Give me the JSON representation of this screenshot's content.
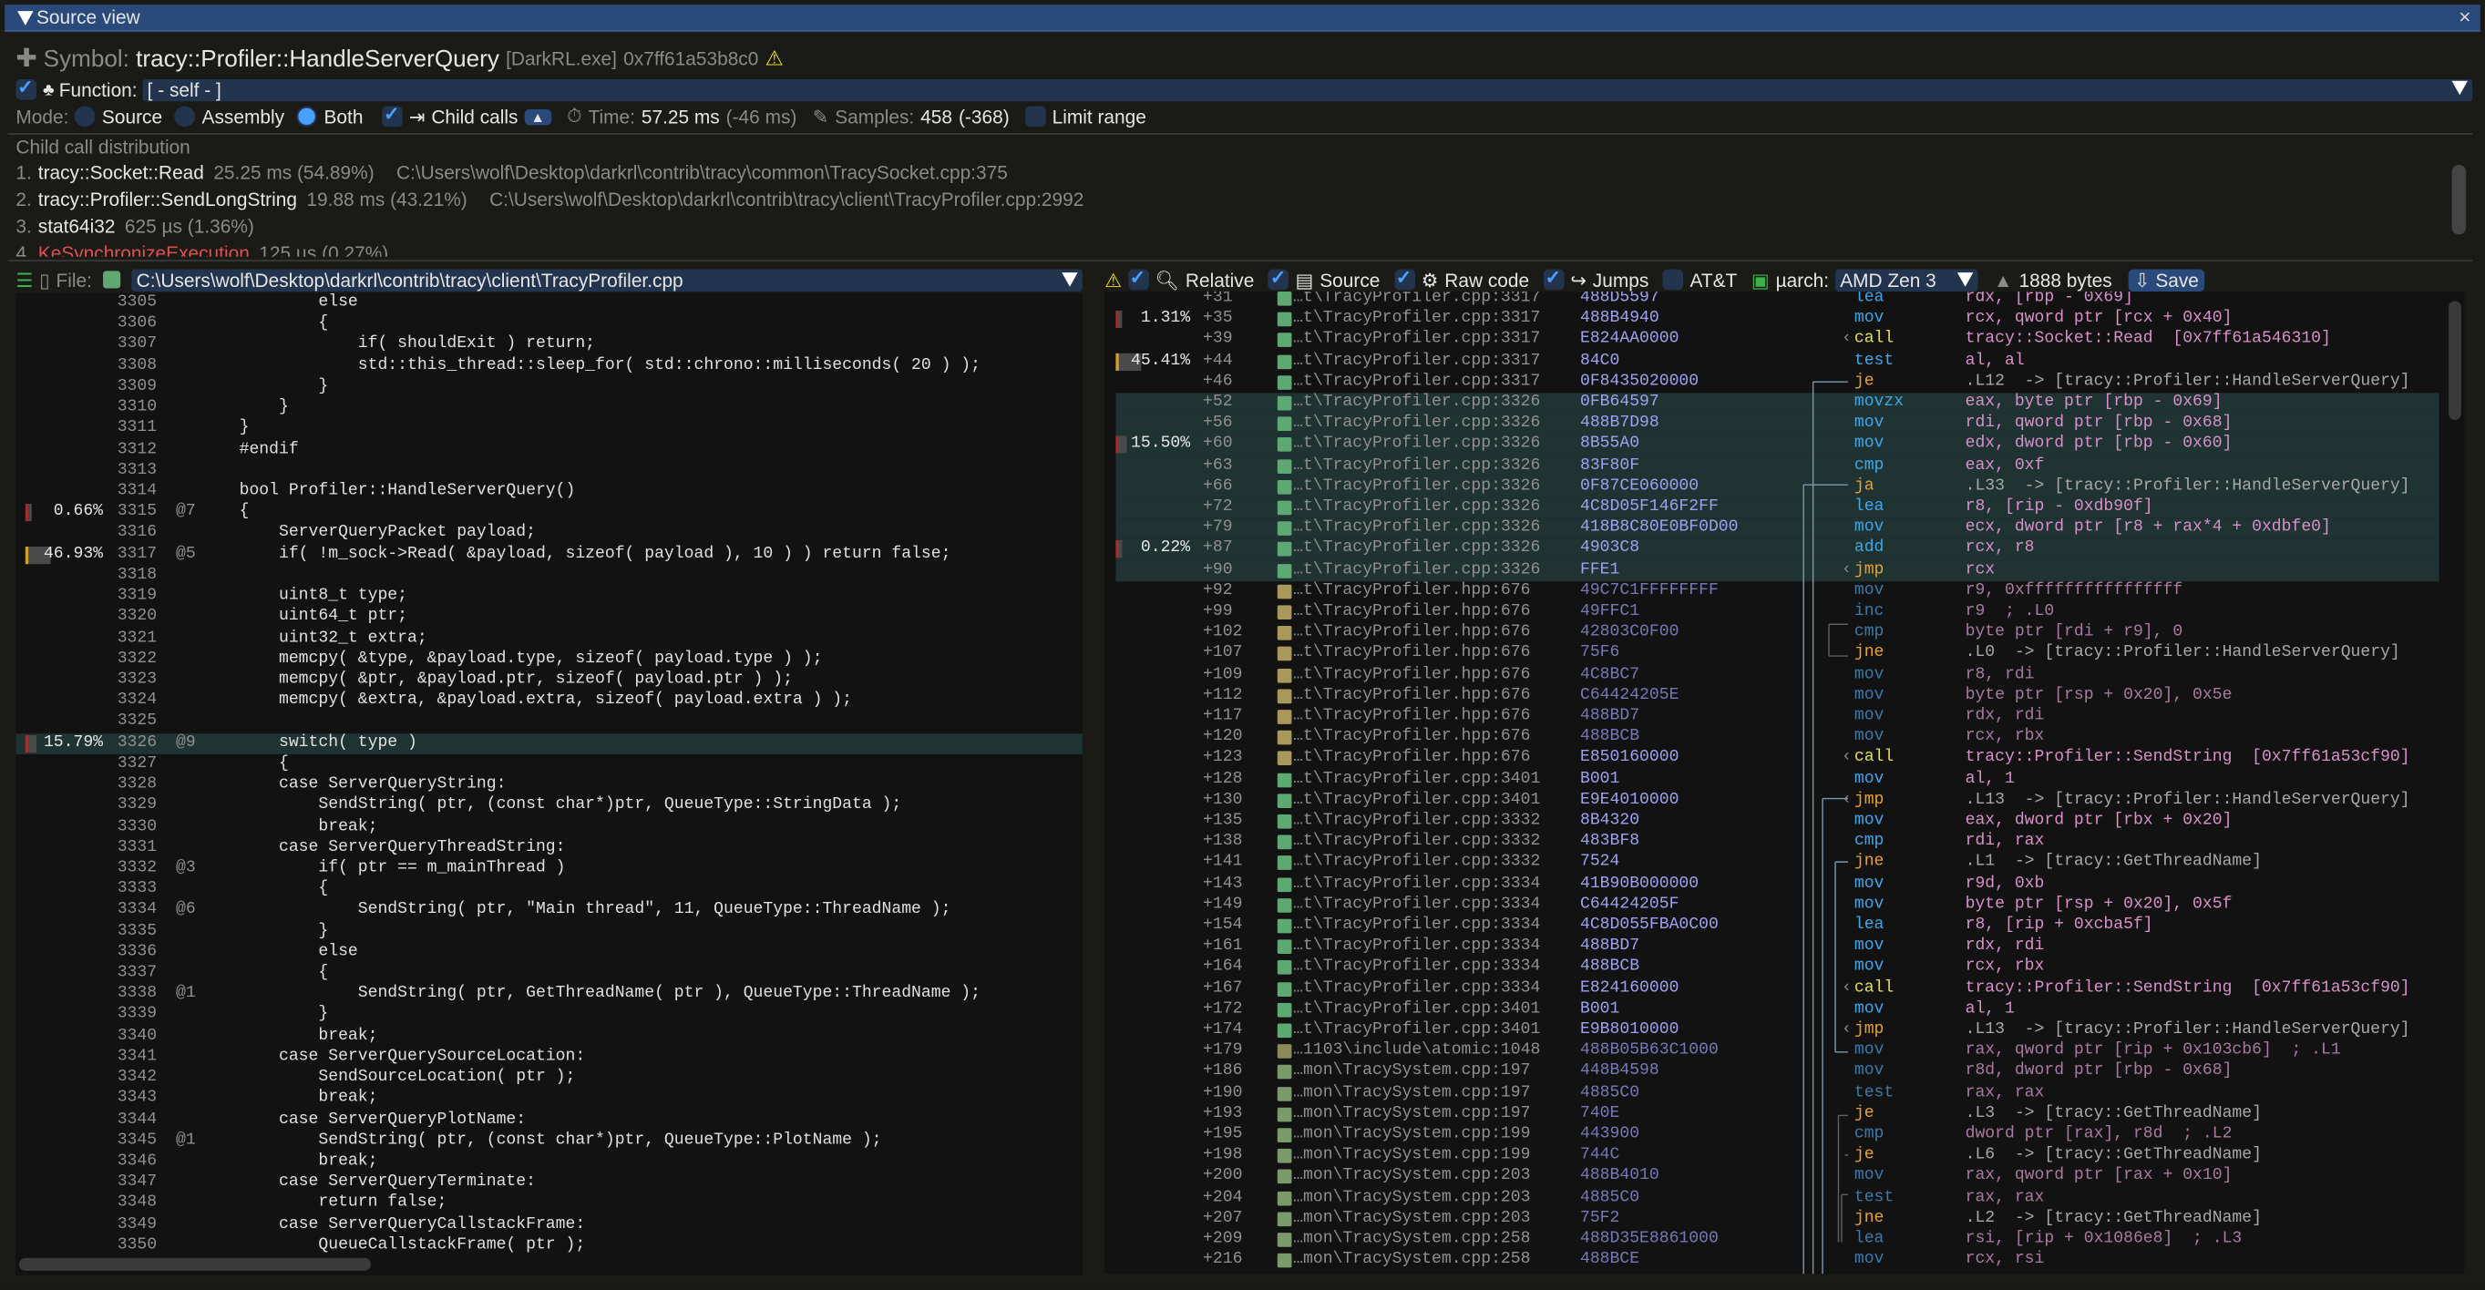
{
  "window": {
    "title": "Source view",
    "close": "×"
  },
  "symbol": {
    "label": "Symbol:",
    "name": "tracy::Profiler::HandleServerQuery",
    "image": "[DarkRL.exe]",
    "address": "0x7ff61a53b8c0"
  },
  "function": {
    "label": "Function:",
    "value": "[ - self - ]",
    "checked": true
  },
  "mode": {
    "label": "Mode:",
    "options": [
      "Source",
      "Assembly",
      "Both"
    ],
    "selected": "Both",
    "child_calls": "Child calls",
    "child_calls_checked": true,
    "time_label": "Time:",
    "time": "57.25 ms",
    "time_delta": "(-46 ms)",
    "samples_label": "Samples:",
    "samples": "458",
    "samples_delta": "(-368)",
    "limit_range": "Limit range"
  },
  "child_dist": {
    "title": "Child call distribution",
    "items": [
      {
        "n": "1.",
        "name": "tracy::Socket::Read",
        "time": "25.25 ms (54.89%)",
        "file": "C:\\Users\\wolf\\Desktop\\darkrl\\contrib\\tracy\\common\\TracySocket.cpp:375"
      },
      {
        "n": "2.",
        "name": "tracy::Profiler::SendLongString",
        "time": "19.88 ms (43.21%)",
        "file": "C:\\Users\\wolf\\Desktop\\darkrl\\contrib\\tracy\\client\\TracyProfiler.cpp:2992"
      },
      {
        "n": "3.",
        "name": "stat64i32",
        "time": "625 µs (1.36%)",
        "file": ""
      },
      {
        "n": "4.",
        "name": "KeSynchronizeExecution",
        "time": "125 µs (0.27%)",
        "file": "",
        "color": "#e05050"
      }
    ]
  },
  "source": {
    "file_label": "File:",
    "file": "C:\\Users\\wolf\\Desktop\\darkrl\\contrib\\tracy\\client\\TracyProfiler.cpp",
    "lines": [
      [
        "3305",
        "",
        "",
        "        else"
      ],
      [
        "3306",
        "",
        "",
        "        {"
      ],
      [
        "3307",
        "",
        "",
        "            if( shouldExit ) return;"
      ],
      [
        "3308",
        "",
        "",
        "            std::this_thread::sleep_for( std::chrono::milliseconds( 20 ) );"
      ],
      [
        "3309",
        "",
        "",
        "        }"
      ],
      [
        "3310",
        "",
        "",
        "    }"
      ],
      [
        "3311",
        "",
        "",
        "}"
      ],
      [
        "3312",
        "",
        "",
        "#endif"
      ],
      [
        "3313",
        "",
        "",
        ""
      ],
      [
        "3314",
        "",
        "",
        "bool Profiler::HandleServerQuery()"
      ],
      [
        "3315",
        "0.66%",
        "@7",
        "{"
      ],
      [
        "3316",
        "",
        "",
        "    ServerQueryPacket payload;"
      ],
      [
        "3317",
        "46.93%",
        "@5",
        "    if( !m_sock->Read( &payload, sizeof( payload ), 10 ) ) return false;"
      ],
      [
        "3318",
        "",
        "",
        ""
      ],
      [
        "3319",
        "",
        "",
        "    uint8_t type;"
      ],
      [
        "3320",
        "",
        "",
        "    uint64_t ptr;"
      ],
      [
        "3321",
        "",
        "",
        "    uint32_t extra;"
      ],
      [
        "3322",
        "",
        "",
        "    memcpy( &type, &payload.type, sizeof( payload.type ) );"
      ],
      [
        "3323",
        "",
        "",
        "    memcpy( &ptr, &payload.ptr, sizeof( payload.ptr ) );"
      ],
      [
        "3324",
        "",
        "",
        "    memcpy( &extra, &payload.extra, sizeof( payload.extra ) );"
      ],
      [
        "3325",
        "",
        "",
        ""
      ],
      [
        "3326",
        "15.79%",
        "@9",
        "    switch( type )"
      ],
      [
        "3327",
        "",
        "",
        "    {"
      ],
      [
        "3328",
        "",
        "",
        "    case ServerQueryString:"
      ],
      [
        "3329",
        "",
        "",
        "        SendString( ptr, (const char*)ptr, QueueType::StringData );"
      ],
      [
        "3330",
        "",
        "",
        "        break;"
      ],
      [
        "3331",
        "",
        "",
        "    case ServerQueryThreadString:"
      ],
      [
        "3332",
        "",
        "@3",
        "        if( ptr == m_mainThread )"
      ],
      [
        "3333",
        "",
        "",
        "        {"
      ],
      [
        "3334",
        "",
        "@6",
        "            SendString( ptr, \"Main thread\", 11, QueueType::ThreadName );"
      ],
      [
        "3335",
        "",
        "",
        "        }"
      ],
      [
        "3336",
        "",
        "",
        "        else"
      ],
      [
        "3337",
        "",
        "",
        "        {"
      ],
      [
        "3338",
        "",
        "@1",
        "            SendString( ptr, GetThreadName( ptr ), QueueType::ThreadName );"
      ],
      [
        "3339",
        "",
        "",
        "        }"
      ],
      [
        "3340",
        "",
        "",
        "        break;"
      ],
      [
        "3341",
        "",
        "",
        "    case ServerQuerySourceLocation:"
      ],
      [
        "3342",
        "",
        "",
        "        SendSourceLocation( ptr );"
      ],
      [
        "3343",
        "",
        "",
        "        break;"
      ],
      [
        "3344",
        "",
        "",
        "    case ServerQueryPlotName:"
      ],
      [
        "3345",
        "",
        "@1",
        "        SendString( ptr, (const char*)ptr, QueueType::PlotName );"
      ],
      [
        "3346",
        "",
        "",
        "        break;"
      ],
      [
        "3347",
        "",
        "",
        "    case ServerQueryTerminate:"
      ],
      [
        "3348",
        "",
        "",
        "        return false;"
      ],
      [
        "3349",
        "",
        "",
        "    case ServerQueryCallstackFrame:"
      ],
      [
        "3350",
        "",
        "",
        "        QueueCallstackFrame( ptr );"
      ]
    ],
    "highlight_line": "3326"
  },
  "asm": {
    "toolbar": {
      "relative": "Relative",
      "source": "Source",
      "raw_code": "Raw code",
      "jumps": "Jumps",
      "att": "AT&T",
      "uarch_label": "µarch:",
      "uarch": "AMD Zen 3",
      "size": "1888 bytes",
      "save": "Save"
    },
    "file_colors": {
      "cpp": "#5fa874",
      "hpp": "#a8985c",
      "atomic": "#8a8a5a",
      "sys": "#7a9a6a"
    },
    "rows": [
      [
        "",
        "+31",
        "…t\\TracyProfiler.cpp:3317",
        "cpp",
        "488D5597",
        "lea",
        "rdx, [rbp - 0x69]",
        ""
      ],
      [
        "1.31%",
        "+35",
        "…t\\TracyProfiler.cpp:3317",
        "cpp",
        "488B4940",
        "mov",
        "rcx, qword ptr [rcx + 0x40]",
        ""
      ],
      [
        "",
        "+39",
        "…t\\TracyProfiler.cpp:3317",
        "cpp",
        "E824AA0000",
        "call",
        "tracy::Socket::Read  [0x7ff61a546310]",
        ""
      ],
      [
        "45.41%",
        "+44",
        "…t\\TracyProfiler.cpp:3317",
        "cpp",
        "84C0",
        "test",
        "al, al",
        ""
      ],
      [
        "",
        "+46",
        "…t\\TracyProfiler.cpp:3317",
        "cpp",
        "0F8435020000",
        "je",
        ".L12  -> [tracy::Profiler::HandleServerQuery]",
        ""
      ],
      [
        "",
        "+52",
        "…t\\TracyProfiler.cpp:3326",
        "cpp",
        "0FB64597",
        "movzx",
        "eax, byte ptr [rbp - 0x69]",
        "hl"
      ],
      [
        "",
        "+56",
        "…t\\TracyProfiler.cpp:3326",
        "cpp",
        "488B7D98",
        "mov",
        "rdi, qword ptr [rbp - 0x68]",
        "hl"
      ],
      [
        "15.50%",
        "+60",
        "…t\\TracyProfiler.cpp:3326",
        "cpp",
        "8B55A0",
        "mov",
        "edx, dword ptr [rbp - 0x60]",
        "hl"
      ],
      [
        "",
        "+63",
        "…t\\TracyProfiler.cpp:3326",
        "cpp",
        "83F80F",
        "cmp",
        "eax, 0xf",
        "hl"
      ],
      [
        "",
        "+66",
        "…t\\TracyProfiler.cpp:3326",
        "cpp",
        "0F87CE060000",
        "ja",
        ".L33  -> [tracy::Profiler::HandleServerQuery]",
        "hl"
      ],
      [
        "",
        "+72",
        "…t\\TracyProfiler.cpp:3326",
        "cpp",
        "4C8D05F146F2FF",
        "lea",
        "r8, [rip - 0xdb90f]",
        "hl"
      ],
      [
        "",
        "+79",
        "…t\\TracyProfiler.cpp:3326",
        "cpp",
        "418B8C80E0BF0D00",
        "mov",
        "ecx, dword ptr [r8 + rax*4 + 0xdbfe0]",
        "hl"
      ],
      [
        "0.22%",
        "+87",
        "…t\\TracyProfiler.cpp:3326",
        "cpp",
        "4903C8",
        "add",
        "rcx, r8",
        "hl"
      ],
      [
        "",
        "+90",
        "…t\\TracyProfiler.cpp:3326",
        "cpp",
        "FFE1",
        "jmp",
        "rcx",
        "hl"
      ],
      [
        "",
        "+92",
        "…t\\TracyProfiler.hpp:676",
        "hpp",
        "49C7C1FFFFFFFF",
        "mov",
        "r9, 0xffffffffffffffff",
        "dim"
      ],
      [
        "",
        "+99",
        "…t\\TracyProfiler.hpp:676",
        "hpp",
        "49FFC1",
        "inc",
        "r9  ; .L0",
        "dim"
      ],
      [
        "",
        "+102",
        "…t\\TracyProfiler.hpp:676",
        "hpp",
        "42803C0F00",
        "cmp",
        "byte ptr [rdi + r9], 0",
        "dim"
      ],
      [
        "",
        "+107",
        "…t\\TracyProfiler.hpp:676",
        "hpp",
        "75F6",
        "jne",
        ".L0  -> [tracy::Profiler::HandleServerQuery]",
        "dim"
      ],
      [
        "",
        "+109",
        "…t\\TracyProfiler.hpp:676",
        "hpp",
        "4C8BC7",
        "mov",
        "r8, rdi",
        "dim"
      ],
      [
        "",
        "+112",
        "…t\\TracyProfiler.hpp:676",
        "hpp",
        "C64424205E",
        "mov",
        "byte ptr [rsp + 0x20], 0x5e",
        "dim"
      ],
      [
        "",
        "+117",
        "…t\\TracyProfiler.hpp:676",
        "hpp",
        "488BD7",
        "mov",
        "rdx, rdi",
        "dim"
      ],
      [
        "",
        "+120",
        "…t\\TracyProfiler.hpp:676",
        "hpp",
        "488BCB",
        "mov",
        "rcx, rbx",
        "dim"
      ],
      [
        "",
        "+123",
        "…t\\TracyProfiler.hpp:676",
        "hpp",
        "E850160000",
        "call",
        "tracy::Profiler::SendString  [0x7ff61a53cf90]",
        ""
      ],
      [
        "",
        "+128",
        "…t\\TracyProfiler.cpp:3401",
        "cpp",
        "B001",
        "mov",
        "al, 1",
        ""
      ],
      [
        "",
        "+130",
        "…t\\TracyProfiler.cpp:3401",
        "cpp",
        "E9E4010000",
        "jmp",
        ".L13  -> [tracy::Profiler::HandleServerQuery]",
        ""
      ],
      [
        "",
        "+135",
        "…t\\TracyProfiler.cpp:3332",
        "cpp",
        "8B4320",
        "mov",
        "eax, dword ptr [rbx + 0x20]",
        ""
      ],
      [
        "",
        "+138",
        "…t\\TracyProfiler.cpp:3332",
        "cpp",
        "483BF8",
        "cmp",
        "rdi, rax",
        ""
      ],
      [
        "",
        "+141",
        "…t\\TracyProfiler.cpp:3332",
        "cpp",
        "7524",
        "jne",
        ".L1  -> [tracy::GetThreadName]",
        ""
      ],
      [
        "",
        "+143",
        "…t\\TracyProfiler.cpp:3334",
        "cpp",
        "41B90B000000",
        "mov",
        "r9d, 0xb",
        ""
      ],
      [
        "",
        "+149",
        "…t\\TracyProfiler.cpp:3334",
        "cpp",
        "C64424205F",
        "mov",
        "byte ptr [rsp + 0x20], 0x5f",
        ""
      ],
      [
        "",
        "+154",
        "…t\\TracyProfiler.cpp:3334",
        "cpp",
        "4C8D055FBA0C00",
        "lea",
        "r8, [rip + 0xcba5f]",
        ""
      ],
      [
        "",
        "+161",
        "…t\\TracyProfiler.cpp:3334",
        "cpp",
        "488BD7",
        "mov",
        "rdx, rdi",
        ""
      ],
      [
        "",
        "+164",
        "…t\\TracyProfiler.cpp:3334",
        "cpp",
        "488BCB",
        "mov",
        "rcx, rbx",
        ""
      ],
      [
        "",
        "+167",
        "…t\\TracyProfiler.cpp:3334",
        "cpp",
        "E824160000",
        "call",
        "tracy::Profiler::SendString  [0x7ff61a53cf90]",
        ""
      ],
      [
        "",
        "+172",
        "…t\\TracyProfiler.cpp:3401",
        "cpp",
        "B001",
        "mov",
        "al, 1",
        ""
      ],
      [
        "",
        "+174",
        "…t\\TracyProfiler.cpp:3401",
        "cpp",
        "E9B8010000",
        "jmp",
        ".L13  -> [tracy::Profiler::HandleServerQuery]",
        ""
      ],
      [
        "",
        "+179",
        "…1103\\include\\atomic:1048",
        "atomic",
        "488B05B63C1000",
        "mov",
        "rax, qword ptr [rip + 0x103cb6]  ; .L1",
        "dim"
      ],
      [
        "",
        "+186",
        "…mon\\TracySystem.cpp:197",
        "sys",
        "448B4598",
        "mov",
        "r8d, dword ptr [rbp - 0x68]",
        "dim"
      ],
      [
        "",
        "+190",
        "…mon\\TracySystem.cpp:197",
        "sys",
        "4885C0",
        "test",
        "rax, rax",
        "dim"
      ],
      [
        "",
        "+193",
        "…mon\\TracySystem.cpp:197",
        "sys",
        "740E",
        "je",
        ".L3  -> [tracy::GetThreadName]",
        "dim"
      ],
      [
        "",
        "+195",
        "…mon\\TracySystem.cpp:199",
        "sys",
        "443900",
        "cmp",
        "dword ptr [rax], r8d  ; .L2",
        "dim"
      ],
      [
        "",
        "+198",
        "…mon\\TracySystem.cpp:199",
        "sys",
        "744C",
        "je",
        ".L6  -> [tracy::GetThreadName]",
        "dim"
      ],
      [
        "",
        "+200",
        "…mon\\TracySystem.cpp:203",
        "sys",
        "488B4010",
        "mov",
        "rax, qword ptr [rax + 0x10]",
        "dim"
      ],
      [
        "",
        "+204",
        "…mon\\TracySystem.cpp:203",
        "sys",
        "4885C0",
        "test",
        "rax, rax",
        "dim"
      ],
      [
        "",
        "+207",
        "…mon\\TracySystem.cpp:203",
        "sys",
        "75F2",
        "jne",
        ".L2  -> [tracy::GetThreadName]",
        "dim"
      ],
      [
        "",
        "+209",
        "…mon\\TracySystem.cpp:258",
        "sys",
        "488D35E8861000",
        "lea",
        "rsi, [rip + 0x1086e8]  ; .L3",
        "dim"
      ],
      [
        "",
        "+216",
        "…mon\\TracySystem.cpp:258",
        "sys",
        "488BCE",
        "mov",
        "rcx, rsi",
        "dim"
      ]
    ]
  },
  "colors": {
    "accent": "#2b4a7c",
    "highlight_row": "#1f3333",
    "warning": "#f0e000"
  }
}
